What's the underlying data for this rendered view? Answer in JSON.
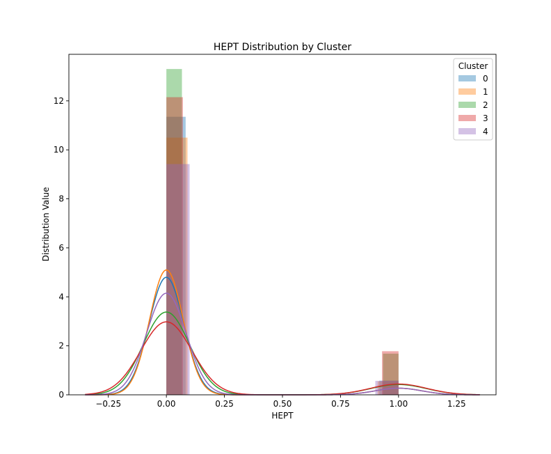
{
  "chart_data": {
    "type": "histogram-kde",
    "title": "HEPT Distribution by Cluster",
    "xlabel": "HEPT",
    "ylabel": "Distribution Value",
    "xlim": [
      -0.42,
      1.42
    ],
    "ylim": [
      0,
      13.9
    ],
    "xticks": [
      -0.25,
      0.0,
      0.25,
      0.5,
      0.75,
      1.0,
      1.25
    ],
    "xtick_labels": [
      "−0.25",
      "0.00",
      "0.25",
      "0.50",
      "0.75",
      "1.00",
      "1.25"
    ],
    "yticks": [
      0,
      2,
      4,
      6,
      8,
      10,
      12
    ],
    "ytick_labels": [
      "0",
      "2",
      "4",
      "6",
      "8",
      "10",
      "12"
    ],
    "grid": false,
    "legend": {
      "title": "Cluster",
      "placement": "top-right"
    },
    "series": [
      {
        "name": "0",
        "color": "#1f77b4",
        "bars": [
          {
            "x0": 0.0,
            "x1": 0.083,
            "height": 11.35
          },
          {
            "x0": 0.917,
            "x1": 1.0,
            "height": 0.58
          }
        ],
        "kde": [
          {
            "mu": 0.0,
            "sigma": 0.075,
            "peak": 4.8
          },
          {
            "mu": 1.0,
            "sigma": 0.1,
            "peak": 0.27
          }
        ]
      },
      {
        "name": "1",
        "color": "#ff7f0e",
        "bars": [
          {
            "x0": 0.0,
            "x1": 0.091,
            "height": 10.5
          },
          {
            "x0": 0.91,
            "x1": 1.0,
            "height": 0.55
          }
        ],
        "kde": [
          {
            "mu": 0.0,
            "sigma": 0.072,
            "peak": 5.1
          },
          {
            "mu": 1.0,
            "sigma": 0.1,
            "peak": 0.27
          }
        ]
      },
      {
        "name": "2",
        "color": "#2ca02c",
        "bars": [
          {
            "x0": 0.0,
            "x1": 0.067,
            "height": 13.3
          },
          {
            "x0": 0.933,
            "x1": 1.0,
            "height": 1.68
          }
        ],
        "kde": [
          {
            "mu": 0.0,
            "sigma": 0.1,
            "peak": 3.38
          },
          {
            "mu": 1.0,
            "sigma": 0.12,
            "peak": 0.42
          }
        ]
      },
      {
        "name": "3",
        "color": "#d62728",
        "bars": [
          {
            "x0": 0.0,
            "x1": 0.071,
            "height": 12.15
          },
          {
            "x0": 0.929,
            "x1": 1.0,
            "height": 1.78
          }
        ],
        "kde": [
          {
            "mu": 0.0,
            "sigma": 0.11,
            "peak": 2.98
          },
          {
            "mu": 1.0,
            "sigma": 0.12,
            "peak": 0.44
          }
        ]
      },
      {
        "name": "4",
        "color": "#9467bd",
        "bars": [
          {
            "x0": 0.0,
            "x1": 0.1,
            "height": 9.42
          },
          {
            "x0": 0.9,
            "x1": 1.0,
            "height": 0.57
          }
        ],
        "kde": [
          {
            "mu": 0.0,
            "sigma": 0.085,
            "peak": 4.15
          },
          {
            "mu": 1.0,
            "sigma": 0.1,
            "peak": 0.27
          }
        ]
      }
    ]
  }
}
